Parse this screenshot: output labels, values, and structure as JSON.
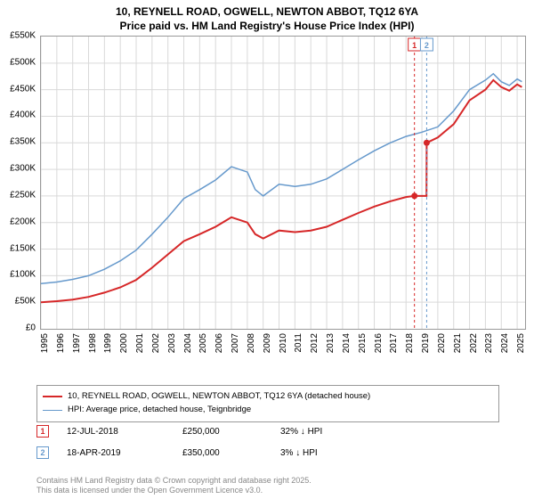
{
  "title": {
    "line1": "10, REYNELL ROAD, OGWELL, NEWTON ABBOT, TQ12 6YA",
    "line2": "Price paid vs. HM Land Registry's House Price Index (HPI)"
  },
  "chart": {
    "type": "line",
    "background_color": "#ffffff",
    "grid_color": "#d9d9d9",
    "axis_color": "#999999",
    "ylim": [
      0,
      550000
    ],
    "ytick_step": 50000,
    "ytick_labels": [
      "£0",
      "£50K",
      "£100K",
      "£150K",
      "£200K",
      "£250K",
      "£300K",
      "£350K",
      "£400K",
      "£450K",
      "£500K",
      "£550K"
    ],
    "xlim": [
      1995,
      2025.5
    ],
    "xtick_years": [
      1995,
      1996,
      1997,
      1998,
      1999,
      2000,
      2001,
      2002,
      2003,
      2004,
      2005,
      2006,
      2007,
      2008,
      2009,
      2010,
      2011,
      2012,
      2013,
      2014,
      2015,
      2016,
      2017,
      2018,
      2019,
      2020,
      2021,
      2022,
      2023,
      2024,
      2025
    ],
    "label_fontsize": 10,
    "series": [
      {
        "key": "price_paid",
        "label": "10, REYNELL ROAD, OGWELL, NEWTON ABBOT, TQ12 6YA (detached house)",
        "color": "#d62728",
        "width": 2,
        "data": [
          [
            1995.0,
            50000
          ],
          [
            1996.0,
            52000
          ],
          [
            1997.0,
            55000
          ],
          [
            1998.0,
            60000
          ],
          [
            1999.0,
            68000
          ],
          [
            2000.0,
            78000
          ],
          [
            2001.0,
            92000
          ],
          [
            2002.0,
            115000
          ],
          [
            2003.0,
            140000
          ],
          [
            2004.0,
            165000
          ],
          [
            2005.0,
            178000
          ],
          [
            2006.0,
            192000
          ],
          [
            2007.0,
            210000
          ],
          [
            2008.0,
            200000
          ],
          [
            2008.5,
            178000
          ],
          [
            2009.0,
            170000
          ],
          [
            2010.0,
            185000
          ],
          [
            2011.0,
            182000
          ],
          [
            2012.0,
            185000
          ],
          [
            2013.0,
            192000
          ],
          [
            2014.0,
            205000
          ],
          [
            2015.0,
            218000
          ],
          [
            2016.0,
            230000
          ],
          [
            2017.0,
            240000
          ],
          [
            2018.0,
            248000
          ],
          [
            2018.53,
            250000
          ],
          [
            2019.29,
            250000
          ],
          [
            2019.3,
            350000
          ],
          [
            2020.0,
            360000
          ],
          [
            2021.0,
            385000
          ],
          [
            2022.0,
            430000
          ],
          [
            2023.0,
            450000
          ],
          [
            2023.5,
            468000
          ],
          [
            2024.0,
            455000
          ],
          [
            2024.5,
            448000
          ],
          [
            2025.0,
            460000
          ],
          [
            2025.3,
            455000
          ]
        ]
      },
      {
        "key": "hpi",
        "label": "HPI: Average price, detached house, Teignbridge",
        "color": "#6699cc",
        "width": 1.5,
        "data": [
          [
            1995.0,
            85000
          ],
          [
            1996.0,
            88000
          ],
          [
            1997.0,
            93000
          ],
          [
            1998.0,
            100000
          ],
          [
            1999.0,
            112000
          ],
          [
            2000.0,
            128000
          ],
          [
            2001.0,
            148000
          ],
          [
            2002.0,
            178000
          ],
          [
            2003.0,
            210000
          ],
          [
            2004.0,
            245000
          ],
          [
            2005.0,
            262000
          ],
          [
            2006.0,
            280000
          ],
          [
            2007.0,
            305000
          ],
          [
            2008.0,
            295000
          ],
          [
            2008.5,
            262000
          ],
          [
            2009.0,
            250000
          ],
          [
            2010.0,
            272000
          ],
          [
            2011.0,
            268000
          ],
          [
            2012.0,
            272000
          ],
          [
            2013.0,
            282000
          ],
          [
            2014.0,
            300000
          ],
          [
            2015.0,
            318000
          ],
          [
            2016.0,
            335000
          ],
          [
            2017.0,
            350000
          ],
          [
            2018.0,
            362000
          ],
          [
            2019.0,
            370000
          ],
          [
            2020.0,
            380000
          ],
          [
            2021.0,
            410000
          ],
          [
            2022.0,
            450000
          ],
          [
            2023.0,
            468000
          ],
          [
            2023.5,
            480000
          ],
          [
            2024.0,
            465000
          ],
          [
            2024.5,
            458000
          ],
          [
            2025.0,
            470000
          ],
          [
            2025.3,
            465000
          ]
        ]
      }
    ],
    "sale_markers": [
      {
        "n": "1",
        "x": 2018.53,
        "color": "#d62728"
      },
      {
        "n": "2",
        "x": 2019.3,
        "color": "#6699cc"
      }
    ]
  },
  "legend": {
    "items": [
      {
        "label_key": "chart.series.0.label",
        "color": "#d62728",
        "width": 2
      },
      {
        "label_key": "chart.series.1.label",
        "color": "#6699cc",
        "width": 1.5
      }
    ]
  },
  "sales": [
    {
      "n": "1",
      "color": "#d62728",
      "date": "12-JUL-2018",
      "price": "£250,000",
      "delta": "32% ↓ HPI"
    },
    {
      "n": "2",
      "color": "#6699cc",
      "date": "18-APR-2019",
      "price": "£350,000",
      "delta": "3% ↓ HPI"
    }
  ],
  "footer": {
    "line1": "Contains HM Land Registry data © Crown copyright and database right 2025.",
    "line2": "This data is licensed under the Open Government Licence v3.0."
  }
}
